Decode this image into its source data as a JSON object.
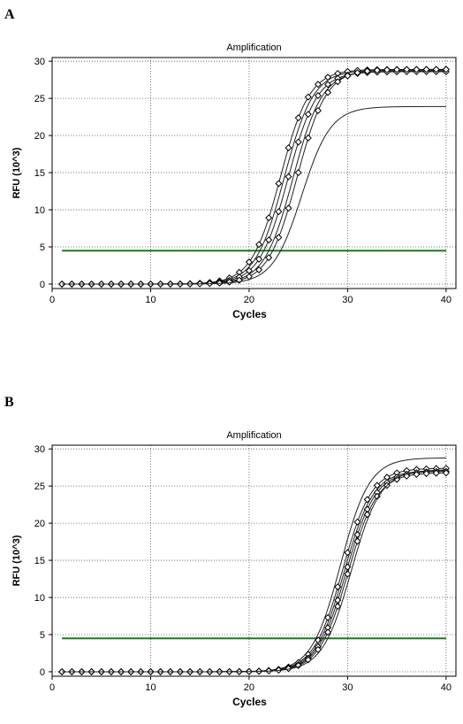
{
  "panels": [
    {
      "letter": "A"
    },
    {
      "letter": "B"
    }
  ],
  "chart_data": [
    {
      "type": "line",
      "title": "Amplification",
      "xlabel": "Cycles",
      "ylabel": "RFU (10^3)",
      "xlim": [
        0,
        41
      ],
      "ylim": [
        -0.6,
        30.5
      ],
      "xticks": [
        0,
        10,
        20,
        30,
        40
      ],
      "yticks": [
        0,
        5,
        10,
        15,
        20,
        25,
        30
      ],
      "grid": true,
      "threshold": 4.5,
      "threshold_color": "#1a7a1a",
      "series": [
        {
          "ct": 20.7,
          "plateau": 28.9,
          "markers": true
        },
        {
          "ct": 21.1,
          "plateau": 28.8,
          "markers": false
        },
        {
          "ct": 21.5,
          "plateau": 28.6,
          "markers": true
        },
        {
          "ct": 22.0,
          "plateau": 28.7,
          "markers": false
        },
        {
          "ct": 22.4,
          "plateau": 28.9,
          "markers": true
        },
        {
          "ct": 23.2,
          "plateau": 23.9,
          "markers": false
        }
      ]
    },
    {
      "type": "line",
      "title": "Amplification",
      "xlabel": "Cycles",
      "ylabel": "RFU (10^3)",
      "xlim": [
        0,
        41
      ],
      "ylim": [
        -0.6,
        30.5
      ],
      "xticks": [
        0,
        10,
        20,
        30,
        40
      ],
      "yticks": [
        0,
        5,
        10,
        15,
        20,
        25,
        30
      ],
      "grid": true,
      "threshold": 4.5,
      "threshold_color": "#1a7a1a",
      "series": [
        {
          "ct": 26.8,
          "plateau": 28.8,
          "markers": false
        },
        {
          "ct": 27.1,
          "plateau": 27.4,
          "markers": true
        },
        {
          "ct": 27.3,
          "plateau": 27.1,
          "markers": false
        },
        {
          "ct": 27.5,
          "plateau": 27.0,
          "markers": true
        },
        {
          "ct": 27.7,
          "plateau": 26.8,
          "markers": true
        },
        {
          "ct": 28.0,
          "plateau": 27.2,
          "markers": false
        }
      ]
    }
  ]
}
